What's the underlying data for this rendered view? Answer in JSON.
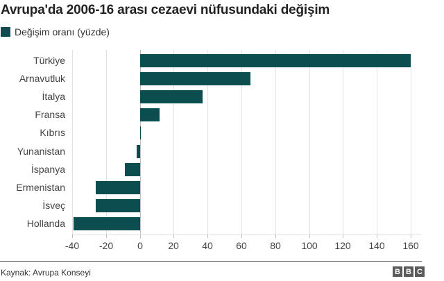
{
  "title": "Avrupa'da 2006-16 arası cezaevi nüfusundaki değişim",
  "legend": {
    "label": "Değişim oranı (yüzde)",
    "color": "#0c4d4f"
  },
  "footer": {
    "source": "Kaynak: Avrupa Konseyi",
    "logo": [
      "B",
      "B",
      "C"
    ]
  },
  "chart_data": {
    "type": "bar",
    "orientation": "horizontal",
    "title": "Avrupa'da 2006-16 arası cezaevi nüfusundaki değişim",
    "xlabel": "",
    "ylabel": "",
    "categories": [
      "Türkiye",
      "Arnavutluk",
      "İtalya",
      "Fransa",
      "Kıbrıs",
      "Yunanistan",
      "İspanya",
      "Ermenistan",
      "İsveç",
      "Hollanda"
    ],
    "series": [
      {
        "name": "Değişim oranı (yüzde)",
        "color": "#0c4d4f",
        "values": [
          160,
          65.5,
          37,
          11.5,
          0.6,
          -2,
          -9,
          -26,
          -26,
          -39
        ]
      }
    ],
    "xlim": [
      -40,
      160
    ],
    "xticks": [
      -40,
      -20,
      0,
      20,
      40,
      60,
      80,
      100,
      120,
      140,
      160
    ],
    "grid": true,
    "legend_position": "top-left"
  }
}
